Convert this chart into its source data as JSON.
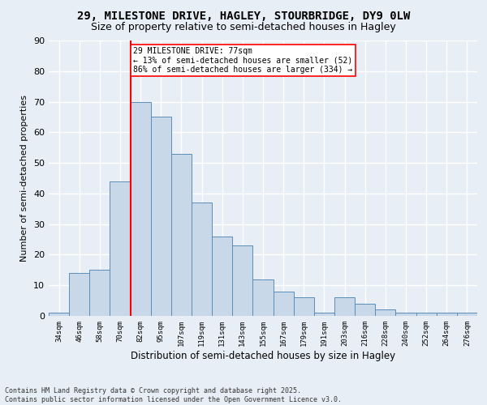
{
  "title1": "29, MILESTONE DRIVE, HAGLEY, STOURBRIDGE, DY9 0LW",
  "title2": "Size of property relative to semi-detached houses in Hagley",
  "xlabel": "Distribution of semi-detached houses by size in Hagley",
  "ylabel": "Number of semi-detached properties",
  "bar_labels": [
    "34sqm",
    "46sqm",
    "58sqm",
    "70sqm",
    "82sqm",
    "95sqm",
    "107sqm",
    "119sqm",
    "131sqm",
    "143sqm",
    "155sqm",
    "167sqm",
    "179sqm",
    "191sqm",
    "203sqm",
    "216sqm",
    "228sqm",
    "240sqm",
    "252sqm",
    "264sqm",
    "276sqm"
  ],
  "bar_values": [
    1,
    14,
    15,
    44,
    70,
    65,
    53,
    37,
    26,
    23,
    12,
    8,
    6,
    1,
    6,
    4,
    2,
    1,
    1,
    1,
    1
  ],
  "bar_color": "#c8d8e8",
  "bar_edge_color": "#5b8db8",
  "vline_x": 3.5,
  "vline_color": "red",
  "annotation_text": "29 MILESTONE DRIVE: 77sqm\n← 13% of semi-detached houses are smaller (52)\n86% of semi-detached houses are larger (334) →",
  "annotation_box_color": "white",
  "annotation_box_edge_color": "red",
  "footnote": "Contains HM Land Registry data © Crown copyright and database right 2025.\nContains public sector information licensed under the Open Government Licence v3.0.",
  "ylim": [
    0,
    90
  ],
  "yticks": [
    0,
    10,
    20,
    30,
    40,
    50,
    60,
    70,
    80,
    90
  ],
  "bg_color": "#e8eef5",
  "grid_color": "white",
  "title1_fontsize": 10,
  "title2_fontsize": 9
}
